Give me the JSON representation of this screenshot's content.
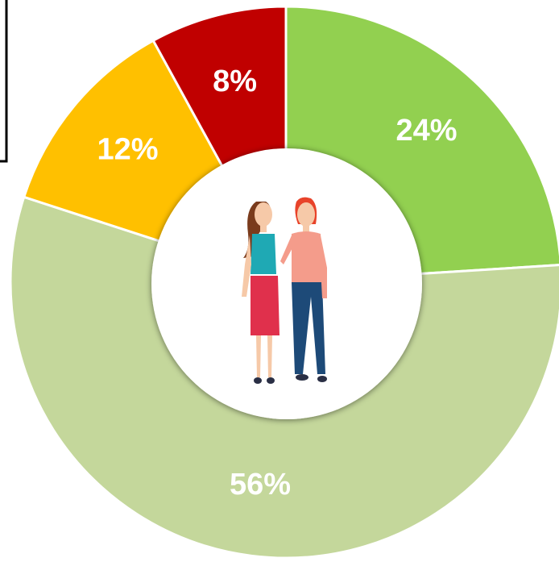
{
  "chart_data": {
    "type": "donut",
    "values": [
      24,
      56,
      12,
      8
    ],
    "value_labels": [
      "24%",
      "56%",
      "12%",
      "8%"
    ],
    "colors": [
      "#92d050",
      "#c4d79b",
      "#ffc000",
      "#c00000"
    ]
  }
}
